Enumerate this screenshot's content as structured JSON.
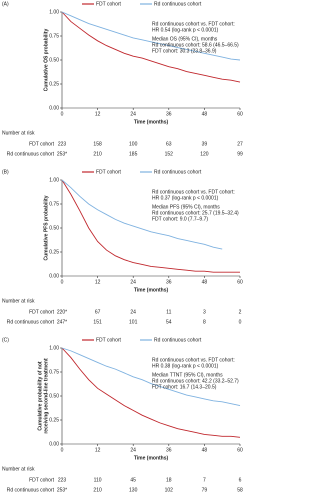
{
  "chart_data": [
    {
      "type": "line",
      "panel": "(A)",
      "ylabel": [
        "Cumulative OS probability"
      ],
      "xlabel": "Time (months)",
      "x": [
        0,
        3,
        6,
        9,
        12,
        15,
        18,
        21,
        24,
        27,
        30,
        33,
        36,
        39,
        42,
        45,
        48,
        51,
        54,
        57,
        60
      ],
      "series": [
        {
          "name": "FDT cohort",
          "color": "#c0272d",
          "values": [
            1,
            0.9,
            0.83,
            0.76,
            0.7,
            0.65,
            0.61,
            0.57,
            0.54,
            0.52,
            0.49,
            0.46,
            0.43,
            0.41,
            0.38,
            0.36,
            0.34,
            0.32,
            0.3,
            0.29,
            0.27
          ]
        },
        {
          "name": "Rd continuous cohort",
          "color": "#7fb2e0",
          "values": [
            1,
            0.96,
            0.92,
            0.88,
            0.85,
            0.82,
            0.79,
            0.76,
            0.73,
            0.71,
            0.69,
            0.67,
            0.65,
            0.63,
            0.61,
            0.59,
            0.57,
            0.55,
            0.53,
            0.51,
            0.5
          ]
        }
      ],
      "xlim": [
        0,
        60
      ],
      "xticks": [
        0,
        12,
        24,
        36,
        48,
        60
      ],
      "ylim": [
        0,
        1
      ],
      "yticks": [
        {
          "value": 0,
          "label": "0.00"
        },
        {
          "value": 0.25,
          "label": "0.25"
        },
        {
          "value": 0.5,
          "label": "0.50"
        },
        {
          "value": 0.75,
          "label": "0.75"
        },
        {
          "value": 1,
          "label": "1.00"
        }
      ],
      "annotations": [
        "Rd continuous cohort vs. FDT cohort:",
        "HR 0.54 (log-rank p < 0.0001)",
        "Median OS (95% CI), months",
        "Rd continuous cohort: 58.6 (46.5–66.5)",
        "FDT cohort: 30.3 (23.8–36.9)"
      ],
      "risk_table": {
        "title": "Number at risk",
        "rows": [
          {
            "name": "FDT cohort",
            "values": [
              223,
              158,
              100,
              63,
              39,
              27
            ]
          },
          {
            "name": "Rd continuous cohort",
            "values": [
              "253*",
              210,
              185,
              152,
              120,
              99
            ]
          }
        ]
      }
    },
    {
      "type": "line",
      "panel": "(B)",
      "ylabel": [
        "Cumulative PFS probability"
      ],
      "xlabel": "Time (months)",
      "x": [
        0,
        3,
        6,
        9,
        12,
        15,
        18,
        21,
        24,
        27,
        30,
        33,
        36,
        39,
        42,
        45,
        48,
        51,
        54,
        57,
        60
      ],
      "series": [
        {
          "name": "FDT cohort",
          "color": "#c0272d",
          "values": [
            1,
            0.85,
            0.68,
            0.5,
            0.36,
            0.27,
            0.21,
            0.17,
            0.14,
            0.12,
            0.1,
            0.09,
            0.08,
            0.07,
            0.06,
            0.05,
            0.05,
            0.04,
            0.04,
            0.04,
            0.04
          ]
        },
        {
          "name": "Rd continuous cohort",
          "color": "#7fb2e0",
          "values": [
            1,
            0.92,
            0.83,
            0.75,
            0.69,
            0.64,
            0.59,
            0.55,
            0.52,
            0.49,
            0.46,
            0.44,
            0.42,
            0.39,
            0.37,
            0.35,
            0.33,
            0.3,
            0.28,
            null,
            null
          ]
        }
      ],
      "xlim": [
        0,
        60
      ],
      "xticks": [
        0,
        12,
        24,
        36,
        48,
        60
      ],
      "ylim": [
        0,
        1
      ],
      "yticks": [
        {
          "value": 0,
          "label": "0.00"
        },
        {
          "value": 0.25,
          "label": "0.25"
        },
        {
          "value": 0.5,
          "label": "0.50"
        },
        {
          "value": 0.75,
          "label": "0.75"
        },
        {
          "value": 1,
          "label": "1.00"
        }
      ],
      "annotations": [
        "Rd continuous cohort vs. FDT cohort:",
        "HR 0.37 (log-rank p < 0.0001)",
        "Median PFS (95% CI), months",
        "Rd continuous cohort: 25.7 (19.5–32.4)",
        "FDT cohort: 9.0 (7.7–9.7)"
      ],
      "risk_table": {
        "title": "Number at risk",
        "rows": [
          {
            "name": "FDT cohort",
            "values": [
              "220*",
              67,
              24,
              11,
              3,
              2
            ]
          },
          {
            "name": "Rd continuous cohort",
            "values": [
              "247*",
              151,
              101,
              54,
              8,
              0
            ]
          }
        ]
      }
    },
    {
      "type": "line",
      "panel": "(C)",
      "ylabel": [
        "Cumulative probability of not",
        "receiving second-line treatment"
      ],
      "xlabel": "Time (months)",
      "x": [
        0,
        3,
        6,
        9,
        12,
        15,
        18,
        21,
        24,
        27,
        30,
        33,
        36,
        39,
        42,
        45,
        48,
        51,
        54,
        57,
        60
      ],
      "series": [
        {
          "name": "FDT cohort",
          "color": "#c0272d",
          "values": [
            1,
            0.9,
            0.78,
            0.67,
            0.58,
            0.52,
            0.46,
            0.4,
            0.35,
            0.3,
            0.26,
            0.22,
            0.19,
            0.16,
            0.14,
            0.12,
            0.1,
            0.09,
            0.08,
            0.08,
            0.07
          ]
        },
        {
          "name": "Rd continuous cohort",
          "color": "#7fb2e0",
          "values": [
            1,
            0.97,
            0.93,
            0.89,
            0.85,
            0.81,
            0.78,
            0.74,
            0.7,
            0.67,
            0.63,
            0.6,
            0.57,
            0.54,
            0.51,
            0.49,
            0.47,
            0.45,
            0.44,
            0.42,
            0.4
          ]
        }
      ],
      "xlim": [
        0,
        60
      ],
      "xticks": [
        0,
        12,
        24,
        36,
        48,
        60
      ],
      "ylim": [
        0,
        1
      ],
      "yticks": [
        {
          "value": 0,
          "label": "0.00"
        },
        {
          "value": 0.25,
          "label": "0.25"
        },
        {
          "value": 0.5,
          "label": "0.50"
        },
        {
          "value": 0.75,
          "label": "0.75"
        },
        {
          "value": 1,
          "label": "1.00"
        }
      ],
      "annotations": [
        "Rd continuous cohort vs. FDT cohort:",
        "HR 0.38 (log-rank p < 0.0001)",
        "Median TTNT (95% CI), months",
        "Rd continuous cohort: 42.2 (33.2–52.7)",
        "FDT cohort: 16.7 (14.3–20.5)"
      ],
      "risk_table": {
        "title": "Number at risk",
        "rows": [
          {
            "name": "FDT cohort",
            "values": [
              223,
              110,
              45,
              18,
              7,
              6
            ]
          },
          {
            "name": "Rd continuous cohort",
            "values": [
              "253*",
              210,
              130,
              102,
              79,
              58
            ]
          }
        ]
      }
    }
  ]
}
